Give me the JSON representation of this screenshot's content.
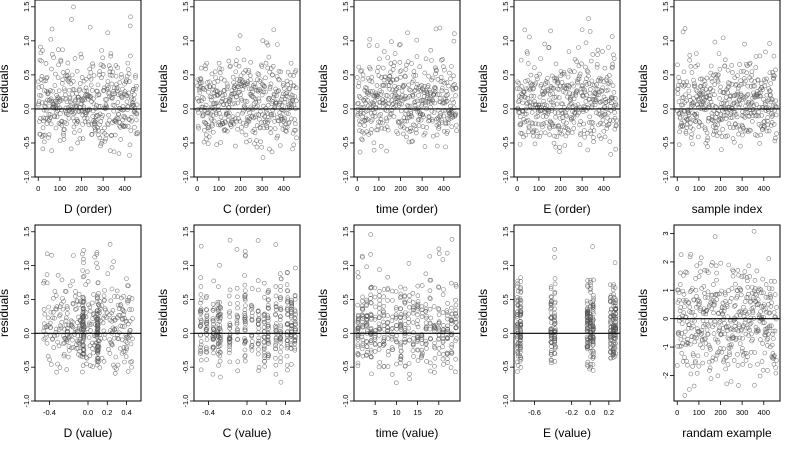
{
  "chart_data": [
    {
      "type": "scatter",
      "xlabel": "D (order)",
      "ylabel": "residuals",
      "xticks": [
        "0",
        "100",
        "200",
        "300",
        "400"
      ],
      "yticks": [
        "-1.0",
        "-0.5",
        "0.0",
        "0.5",
        "1.0",
        "1.5"
      ],
      "xlim": [
        -15,
        475
      ],
      "ylim": [
        -1.0,
        1.6
      ],
      "zero_line": 0,
      "x_kind": "index",
      "n": 460
    },
    {
      "type": "scatter",
      "xlabel": "C (order)",
      "ylabel": "residuals",
      "xticks": [
        "0",
        "100",
        "200",
        "300",
        "400"
      ],
      "yticks": [
        "-1.0",
        "-0.5",
        "0.0",
        "0.5",
        "1.0",
        "1.5"
      ],
      "xlim": [
        -15,
        475
      ],
      "ylim": [
        -1.0,
        1.6
      ],
      "zero_line": 0,
      "x_kind": "index",
      "n": 460
    },
    {
      "type": "scatter",
      "xlabel": "time (order)",
      "ylabel": "residuals",
      "xticks": [
        "0",
        "100",
        "200",
        "300",
        "400"
      ],
      "yticks": [
        "-1.0",
        "-0.5",
        "0.0",
        "0.5",
        "1.0",
        "1.5"
      ],
      "xlim": [
        -15,
        475
      ],
      "ylim": [
        -1.0,
        1.6
      ],
      "zero_line": 0,
      "x_kind": "index",
      "n": 460
    },
    {
      "type": "scatter",
      "xlabel": "E (order)",
      "ylabel": "residuals",
      "xticks": [
        "0",
        "100",
        "200",
        "300",
        "400"
      ],
      "yticks": [
        "-1.0",
        "-0.5",
        "0.0",
        "0.5",
        "1.0",
        "1.5"
      ],
      "xlim": [
        -15,
        475
      ],
      "ylim": [
        -1.0,
        1.6
      ],
      "zero_line": 0,
      "x_kind": "index",
      "n": 460
    },
    {
      "type": "scatter",
      "xlabel": "sample index",
      "ylabel": "residuals",
      "xticks": [
        "0",
        "100",
        "200",
        "300",
        "400"
      ],
      "yticks": [
        "-1.0",
        "-0.5",
        "0.0",
        "0.5",
        "1.0",
        "1.5"
      ],
      "xlim": [
        -15,
        475
      ],
      "ylim": [
        -1.0,
        1.6
      ],
      "zero_line": 0,
      "x_kind": "index",
      "n": 460
    },
    {
      "type": "scatter",
      "xlabel": "D (value)",
      "ylabel": "residuals",
      "xticks": [
        "-0.4",
        "0.0",
        "0.2",
        "0.4"
      ],
      "xtick_values": [
        -0.4,
        0.0,
        0.2,
        0.4
      ],
      "yticks": [
        "-1.0",
        "-0.5",
        "0.0",
        "0.5",
        "1.0",
        "1.5"
      ],
      "xlim": [
        -0.55,
        0.55
      ],
      "ylim": [
        -1.0,
        1.6
      ],
      "zero_line": 0,
      "x_kind": "continuous",
      "n": 460,
      "dense_x": [
        -0.05,
        0.1
      ]
    },
    {
      "type": "scatter",
      "xlabel": "C (value)",
      "ylabel": "residuals",
      "xticks": [
        "-0.4",
        "0.0",
        "0.2",
        "0.4"
      ],
      "xtick_values": [
        -0.4,
        0.0,
        0.2,
        0.4
      ],
      "yticks": [
        "-1.0",
        "-0.5",
        "0.0",
        "0.5",
        "1.0",
        "1.5"
      ],
      "xlim": [
        -0.55,
        0.55
      ],
      "ylim": [
        -1.0,
        1.6
      ],
      "zero_line": 0,
      "x_kind": "levels",
      "levels": [
        -0.48,
        -0.42,
        -0.35,
        -0.3,
        -0.28,
        -0.18,
        -0.1,
        -0.02,
        0.05,
        0.12,
        0.18,
        0.22,
        0.3,
        0.35,
        0.42,
        0.46,
        0.5
      ],
      "n": 460
    },
    {
      "type": "scatter",
      "xlabel": "time (value)",
      "ylabel": "residuals",
      "xticks": [
        "5",
        "10",
        "15",
        "20"
      ],
      "xtick_values": [
        5,
        10,
        15,
        20
      ],
      "yticks": [
        "-1.0",
        "-0.5",
        "0.0",
        "0.5",
        "1.0",
        "1.5"
      ],
      "xlim": [
        0,
        25
      ],
      "ylim": [
        -1.0,
        1.6
      ],
      "zero_line": 0,
      "x_kind": "levels",
      "levels": [
        1,
        2,
        3,
        4,
        5,
        6,
        7,
        8,
        9,
        10,
        11,
        12,
        13,
        14,
        15,
        16,
        17,
        18,
        19,
        20,
        21,
        22,
        23,
        24
      ],
      "n": 460
    },
    {
      "type": "scatter",
      "xlabel": "E (value)",
      "ylabel": "residuals",
      "xticks": [
        "-0.6",
        "-0.2",
        "0.0",
        "0.2"
      ],
      "xtick_values": [
        -0.6,
        -0.2,
        0.0,
        0.2
      ],
      "yticks": [
        "-1.0",
        "-0.5",
        "0.0",
        "0.5",
        "1.0",
        "1.5"
      ],
      "xlim": [
        -0.82,
        0.32
      ],
      "ylim": [
        -1.0,
        1.6
      ],
      "zero_line": 0,
      "x_kind": "levels",
      "levels": [
        -0.78,
        -0.75,
        -0.42,
        -0.38,
        -0.03,
        0.0,
        0.03,
        0.22,
        0.25,
        0.27
      ],
      "n": 460
    },
    {
      "type": "scatter",
      "xlabel": "randam example",
      "ylabel": "residuals",
      "xticks": [
        "0",
        "100",
        "200",
        "300",
        "400"
      ],
      "yticks": [
        "-2",
        "-1",
        "0",
        "1",
        "2",
        "3"
      ],
      "xlim": [
        -15,
        475
      ],
      "ylim": [
        -2.9,
        3.3
      ],
      "zero_line": 0,
      "x_kind": "index",
      "n": 460,
      "normal": true
    }
  ]
}
